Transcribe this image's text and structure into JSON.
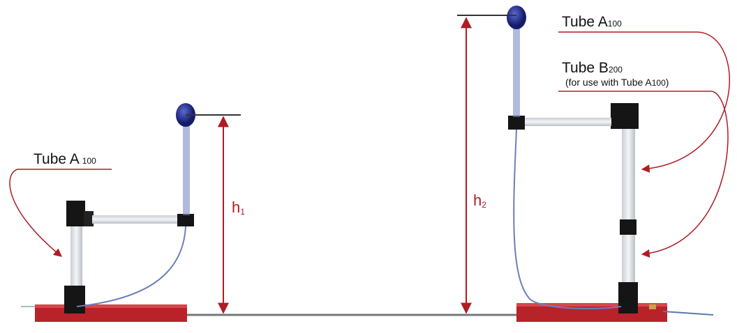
{
  "labels": {
    "left_tube": {
      "name": "Tube A",
      "sub": "100"
    },
    "h1": {
      "name": "h",
      "sub": "1"
    },
    "h2": {
      "name": "h",
      "sub": "2"
    },
    "right_tube_a": {
      "name": "Tube A",
      "sub": "100"
    },
    "right_tube_b": {
      "name": "Tube B",
      "sub": "200"
    },
    "note": {
      "before": "(for use with Tube A",
      "sub": "100",
      "after": ")"
    }
  }
}
